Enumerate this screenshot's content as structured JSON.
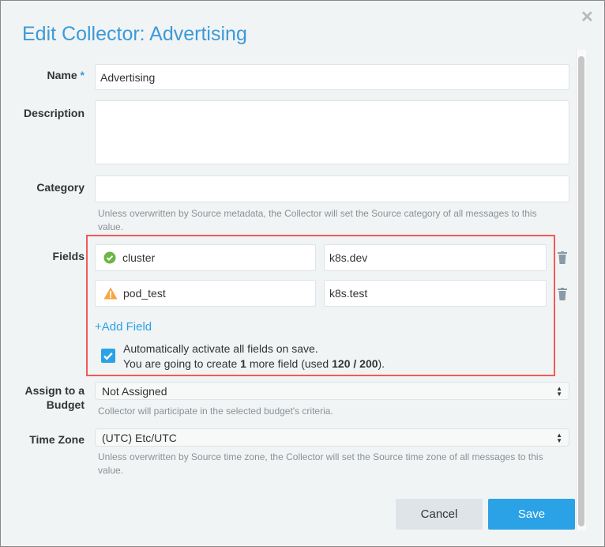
{
  "dialog": {
    "title": "Edit Collector: Advertising",
    "close_icon": "close-icon"
  },
  "form": {
    "name": {
      "label": "Name",
      "required_mark": "*",
      "value": "Advertising"
    },
    "description": {
      "label": "Description",
      "value": ""
    },
    "category": {
      "label": "Category",
      "value": "",
      "help": "Unless overwritten by Source metadata, the Collector will set the Source category of all messages to this value."
    },
    "fields": {
      "label": "Fields",
      "rows": [
        {
          "key": "cluster",
          "value": "k8s.dev",
          "status": "valid",
          "status_icon": "check-circle-icon",
          "status_color": "#6bb643"
        },
        {
          "key": "pod_test",
          "value": "k8s.test",
          "status": "warning",
          "status_icon": "warning-triangle-icon",
          "status_color": "#f7a543"
        }
      ],
      "add_field": "+Add Field",
      "auto_activate": {
        "checked": true,
        "line1": "Automatically activate all fields on save.",
        "line2_prefix": "You are going to create ",
        "count": "1",
        "line2_mid": " more field (used ",
        "used": "120",
        "sep": " / ",
        "limit": "200",
        "line2_suffix": ")."
      }
    },
    "budget": {
      "label_line1": "Assign to a",
      "label_line2": "Budget",
      "value": "Not Assigned",
      "help": "Collector will participate in the selected budget's criteria."
    },
    "timezone": {
      "label": "Time Zone",
      "value": "(UTC) Etc/UTC",
      "help": "Unless overwritten by Source time zone, the Collector will set the Source time zone of all messages to this value."
    }
  },
  "buttons": {
    "cancel": "Cancel",
    "save": "Save"
  },
  "colors": {
    "accent": "#3d9ad8",
    "save": "#2ba2e6",
    "highlight_border": "#f15a5a"
  }
}
